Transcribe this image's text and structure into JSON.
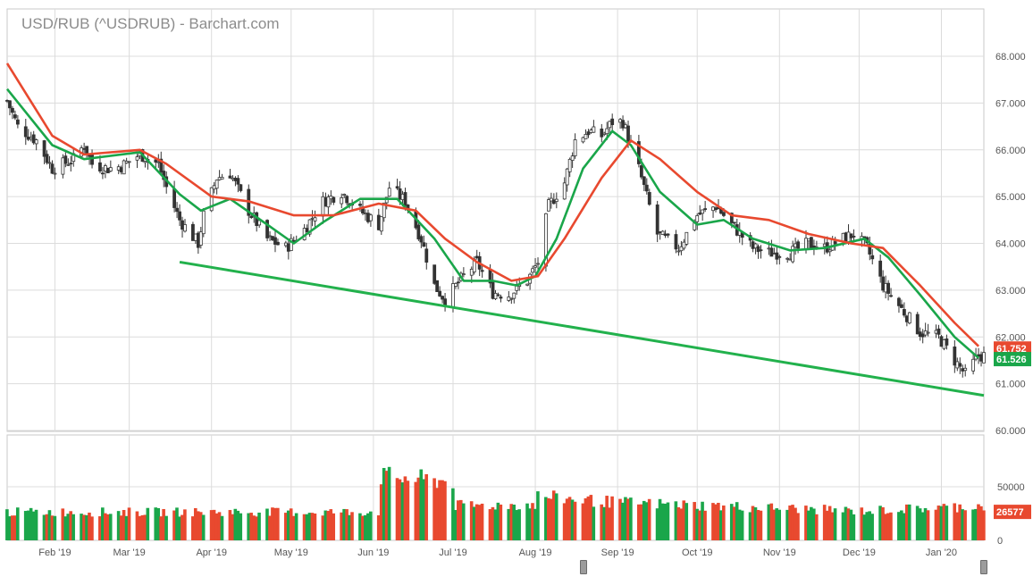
{
  "chart_title": "USD/RUB (^USDRUB) - Barchart.com",
  "colors": {
    "up": "#1aa64a",
    "down": "#e8492f",
    "ma_fast": "#1aa64a",
    "ma_slow": "#e8492f",
    "trendline": "#22b14c",
    "grid": "#dcdcdc",
    "axis_text": "#555555"
  },
  "navigator_handles": [
    "left-handle",
    "right-handle"
  ],
  "chart_data": [
    {
      "type": "candlestick",
      "title": "USD/RUB (^USDRUB) - Barchart.com",
      "x_ticks": [
        "Feb '19",
        "Mar '19",
        "Apr '19",
        "May '19",
        "Jun '19",
        "Jul '19",
        "Aug '19",
        "Sep '19",
        "Oct '19",
        "Nov '19",
        "Dec '19",
        "Jan '20"
      ],
      "y_ticks": [
        "60.000",
        "61.000",
        "62.000",
        "63.000",
        "64.000",
        "65.000",
        "66.000",
        "67.000",
        "68.000"
      ],
      "ylim": [
        60,
        68.4
      ],
      "grid": true,
      "price_anchors": [
        [
          "2019-01-14",
          67.05
        ],
        [
          "2019-01-18",
          66.5
        ],
        [
          "2019-01-25",
          66.2
        ],
        [
          "2019-01-31",
          65.6
        ],
        [
          "2019-02-08",
          65.8
        ],
        [
          "2019-02-12",
          66.1
        ],
        [
          "2019-02-15",
          65.7
        ],
        [
          "2019-02-21",
          65.6
        ],
        [
          "2019-02-26",
          65.65
        ],
        [
          "2019-03-05",
          65.9
        ],
        [
          "2019-03-12",
          65.7
        ],
        [
          "2019-03-15",
          65.2
        ],
        [
          "2019-03-20",
          64.5
        ],
        [
          "2019-03-27",
          64.0
        ],
        [
          "2019-03-29",
          64.6
        ],
        [
          "2019-04-03",
          65.4
        ],
        [
          "2019-04-08",
          65.5
        ],
        [
          "2019-04-15",
          64.7
        ],
        [
          "2019-04-22",
          64.1
        ],
        [
          "2019-04-29",
          63.9
        ],
        [
          "2019-05-06",
          64.3
        ],
        [
          "2019-05-13",
          64.9
        ],
        [
          "2019-05-20",
          65.1
        ],
        [
          "2019-05-27",
          64.7
        ],
        [
          "2019-06-03",
          64.4
        ],
        [
          "2019-06-07",
          65.2
        ],
        [
          "2019-06-13",
          64.9
        ],
        [
          "2019-06-19",
          64.1
        ],
        [
          "2019-06-24",
          63.1
        ],
        [
          "2019-06-28",
          62.8
        ],
        [
          "2019-07-05",
          63.3
        ],
        [
          "2019-07-10",
          63.6
        ],
        [
          "2019-07-16",
          62.95
        ],
        [
          "2019-07-22",
          62.9
        ],
        [
          "2019-07-29",
          63.2
        ],
        [
          "2019-08-02",
          63.6
        ],
        [
          "2019-08-06",
          64.8
        ],
        [
          "2019-08-12",
          65.3
        ],
        [
          "2019-08-16",
          66.2
        ],
        [
          "2019-08-21",
          66.4
        ],
        [
          "2019-08-26",
          66.3
        ],
        [
          "2019-08-30",
          66.6
        ],
        [
          "2019-09-03",
          66.6
        ],
        [
          "2019-09-09",
          65.6
        ],
        [
          "2019-09-16",
          64.2
        ],
        [
          "2019-09-24",
          63.9
        ],
        [
          "2019-10-01",
          64.6
        ],
        [
          "2019-10-08",
          64.8
        ],
        [
          "2019-10-14",
          64.4
        ],
        [
          "2019-10-22",
          63.9
        ],
        [
          "2019-10-28",
          63.8
        ],
        [
          "2019-11-05",
          63.8
        ],
        [
          "2019-11-12",
          64.0
        ],
        [
          "2019-11-18",
          63.9
        ],
        [
          "2019-11-25",
          64.1
        ],
        [
          "2019-11-29",
          64.2
        ],
        [
          "2019-12-04",
          63.9
        ],
        [
          "2019-12-10",
          63.1
        ],
        [
          "2019-12-17",
          62.6
        ],
        [
          "2019-12-24",
          62.1
        ],
        [
          "2019-12-31",
          62.0
        ],
        [
          "2020-01-06",
          61.5
        ],
        [
          "2020-01-10",
          61.2
        ],
        [
          "2020-01-15",
          61.6
        ]
      ],
      "moving_averages": [
        {
          "color": "#1aa64a",
          "points": [
            [
              "2019-01-14",
              67.3
            ],
            [
              "2019-01-31",
              66.1
            ],
            [
              "2019-02-12",
              65.8
            ],
            [
              "2019-03-05",
              65.95
            ],
            [
              "2019-03-20",
              65.05
            ],
            [
              "2019-03-28",
              64.7
            ],
            [
              "2019-04-08",
              64.95
            ],
            [
              "2019-04-22",
              64.4
            ],
            [
              "2019-05-02",
              64.0
            ],
            [
              "2019-05-13",
              64.45
            ],
            [
              "2019-05-27",
              64.95
            ],
            [
              "2019-06-10",
              64.95
            ],
            [
              "2019-06-24",
              64.1
            ],
            [
              "2019-07-05",
              63.2
            ],
            [
              "2019-07-16",
              63.2
            ],
            [
              "2019-07-25",
              63.1
            ],
            [
              "2019-08-01",
              63.3
            ],
            [
              "2019-08-09",
              64.1
            ],
            [
              "2019-08-19",
              65.6
            ],
            [
              "2019-08-30",
              66.4
            ],
            [
              "2019-09-06",
              66.1
            ],
            [
              "2019-09-17",
              65.1
            ],
            [
              "2019-10-01",
              64.4
            ],
            [
              "2019-10-11",
              64.5
            ],
            [
              "2019-10-22",
              64.1
            ],
            [
              "2019-11-05",
              63.85
            ],
            [
              "2019-11-18",
              63.9
            ],
            [
              "2019-12-03",
              64.1
            ],
            [
              "2019-12-12",
              63.7
            ],
            [
              "2019-12-24",
              62.9
            ],
            [
              "2020-01-06",
              62.0
            ],
            [
              "2020-01-15",
              61.55
            ]
          ]
        },
        {
          "color": "#e8492f",
          "points": [
            [
              "2019-01-14",
              67.85
            ],
            [
              "2019-01-31",
              66.3
            ],
            [
              "2019-02-12",
              65.9
            ],
            [
              "2019-03-05",
              66.0
            ],
            [
              "2019-03-15",
              65.7
            ],
            [
              "2019-04-01",
              65.0
            ],
            [
              "2019-04-15",
              64.9
            ],
            [
              "2019-05-02",
              64.6
            ],
            [
              "2019-05-17",
              64.6
            ],
            [
              "2019-06-03",
              64.85
            ],
            [
              "2019-06-17",
              64.7
            ],
            [
              "2019-06-28",
              64.1
            ],
            [
              "2019-07-10",
              63.6
            ],
            [
              "2019-07-23",
              63.2
            ],
            [
              "2019-08-02",
              63.3
            ],
            [
              "2019-08-12",
              64.1
            ],
            [
              "2019-08-26",
              65.4
            ],
            [
              "2019-09-06",
              66.2
            ],
            [
              "2019-09-17",
              65.8
            ],
            [
              "2019-10-01",
              65.1
            ],
            [
              "2019-10-14",
              64.6
            ],
            [
              "2019-10-28",
              64.5
            ],
            [
              "2019-11-12",
              64.2
            ],
            [
              "2019-11-28",
              64.0
            ],
            [
              "2019-12-10",
              63.9
            ],
            [
              "2019-12-24",
              63.1
            ],
            [
              "2020-01-06",
              62.3
            ],
            [
              "2020-01-15",
              61.8
            ]
          ]
        }
      ],
      "trendline": [
        [
          "2019-03-20",
          63.6
        ],
        [
          "2020-01-17",
          60.75
        ]
      ],
      "last_value_labels": [
        {
          "text": "61.752",
          "color": "#e8492f",
          "value": 61.752
        },
        {
          "text": "61.526",
          "color": "#1aa64a",
          "value": 61.526
        }
      ]
    },
    {
      "type": "bar",
      "title": "Volume",
      "y_ticks": [
        "0",
        "50000"
      ],
      "ylim": [
        0,
        65000
      ],
      "series": [
        {
          "name": "",
          "segments": [
            [
              "2019-01-14",
              27000
            ],
            [
              "2019-06-03",
              27000
            ],
            [
              "2019-06-04",
              61000
            ],
            [
              "2019-07-01",
              56000
            ],
            [
              "2019-07-02",
              33000
            ],
            [
              "2019-08-01",
              34000
            ],
            [
              "2019-08-02",
              42000
            ],
            [
              "2019-09-01",
              36000
            ],
            [
              "2019-09-02",
              36000
            ],
            [
              "2019-12-01",
              28000
            ],
            [
              "2019-12-02",
              28000
            ],
            [
              "2020-01-17",
              33000
            ]
          ]
        }
      ],
      "last_value_label": {
        "text": "26577",
        "value": 26577
      }
    }
  ]
}
